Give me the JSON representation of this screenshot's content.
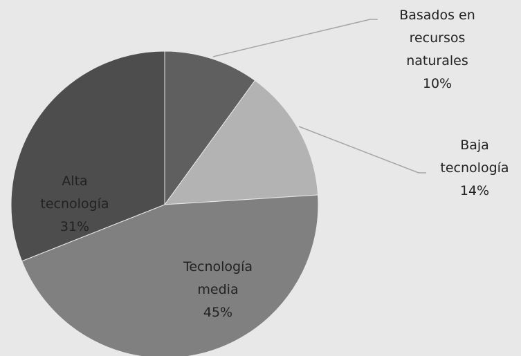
{
  "chart_data": {
    "type": "pie",
    "categories": [
      "Basados en recursos naturales",
      "Baja tecnología",
      "Tecnología media",
      "Alta tecnología"
    ],
    "values": [
      10,
      14,
      45,
      31
    ],
    "value_labels": [
      "10%",
      "14%",
      "45%",
      "31%"
    ],
    "colors": [
      "#5f5f5f",
      "#b3b3b3",
      "#808080",
      "#4d4d4d"
    ]
  }
}
